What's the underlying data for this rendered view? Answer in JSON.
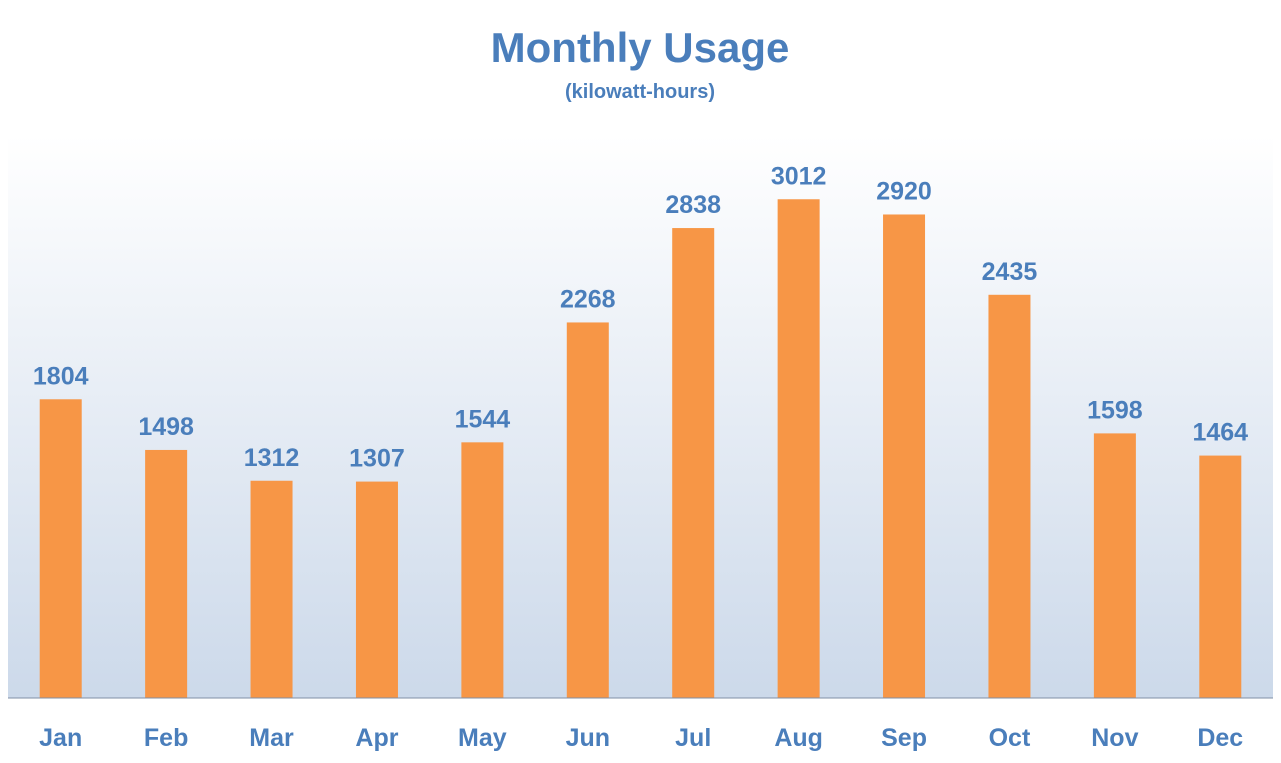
{
  "colors": {
    "text": "#4a7ebb",
    "bar": "#f79646",
    "plot_top": "#ffffff",
    "plot_bottom": "#ccd9ea",
    "axis": "#7f8fa6"
  },
  "chart_data": {
    "type": "bar",
    "title": "Monthly Usage",
    "subtitle": "(kilowatt-hours)",
    "categories": [
      "Jan",
      "Feb",
      "Mar",
      "Apr",
      "May",
      "Jun",
      "Jul",
      "Aug",
      "Sep",
      "Oct",
      "Nov",
      "Dec"
    ],
    "values": [
      1804,
      1498,
      1312,
      1307,
      1544,
      2268,
      2838,
      3012,
      2920,
      2435,
      1598,
      1464
    ],
    "ylim": [
      0,
      3400
    ],
    "grid": false,
    "legend": "none",
    "data_labels": true
  }
}
